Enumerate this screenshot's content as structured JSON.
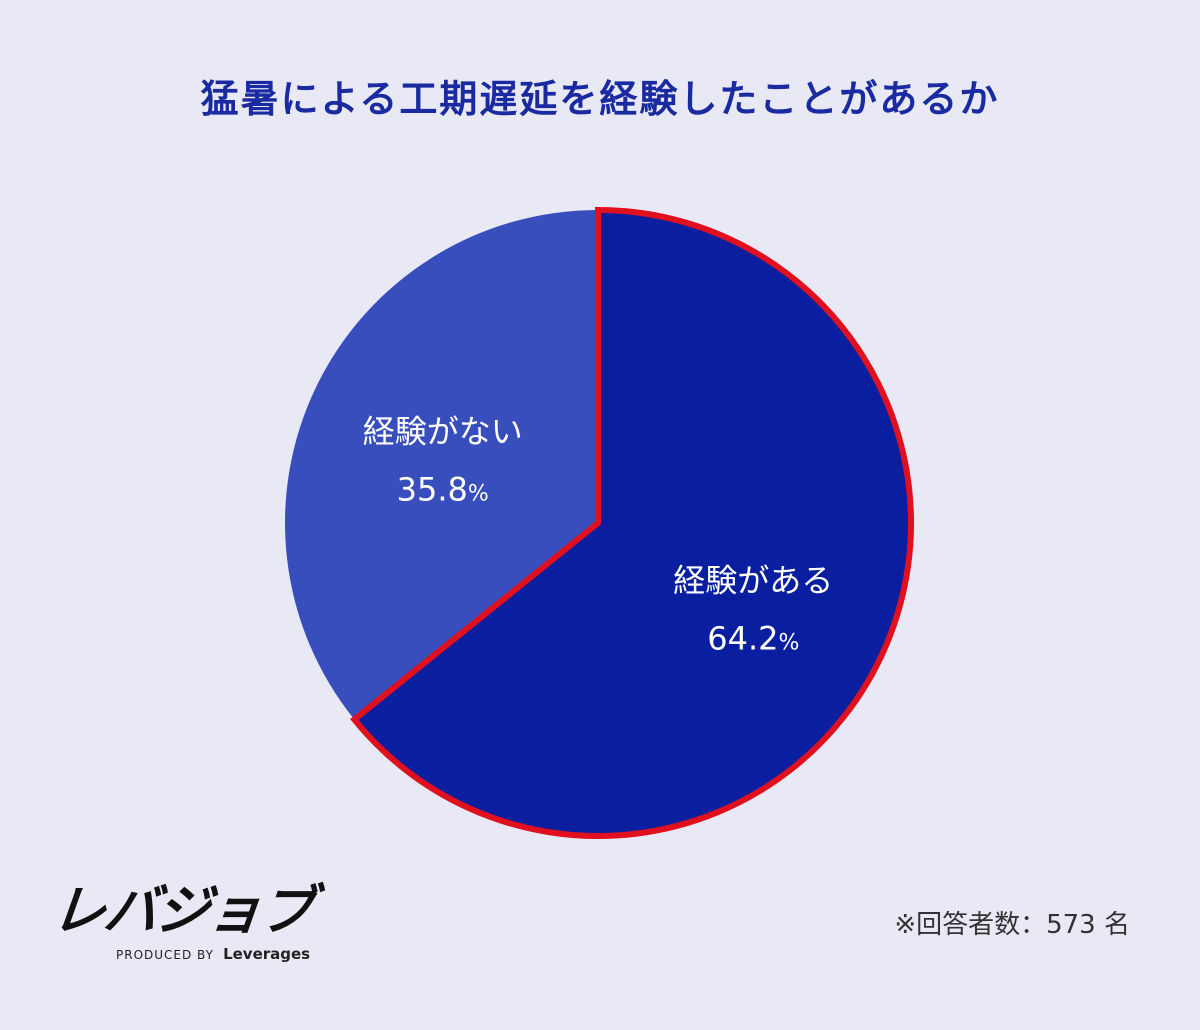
{
  "chart_data": {
    "type": "pie",
    "title": "猛暑による工期遅延を経験したことがあるか",
    "slices": [
      {
        "label": "経験がある",
        "value": 64.2,
        "display": "64.2",
        "unit": "%",
        "color": "#0a1ea0",
        "highlighted": true
      },
      {
        "label": "経験がない",
        "value": 35.8,
        "display": "35.8",
        "unit": "%",
        "color": "#374ebc",
        "highlighted": false
      }
    ],
    "highlight_color": "#e0101e",
    "start_angle_deg": 0,
    "direction": "clockwise"
  },
  "footnote": "※回答者数：573 名",
  "logo": {
    "main": "レバジョブ",
    "produced_by": "PRODUCED BY",
    "brand": "Leverages"
  }
}
